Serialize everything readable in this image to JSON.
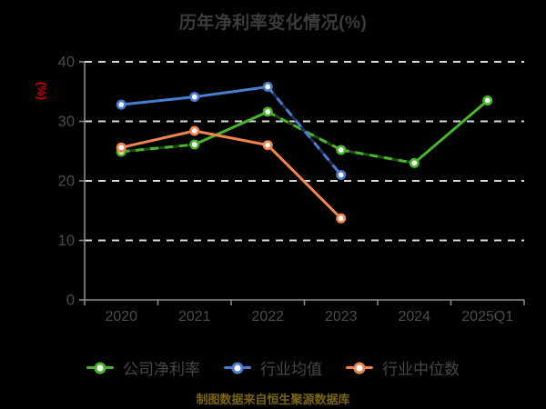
{
  "title": "历年净利率变化情况(%)",
  "footer": "制图数据来自恒生聚源数据库",
  "colors": {
    "background": "#000000",
    "grid": "#d9d9d9",
    "axis": "#8a8a8a",
    "title_text": "#3c3c3c",
    "tick_text": "#4b4b4b",
    "legend_text": "#474747",
    "y_unit_red": "#d40000",
    "footer_yellow": "#7a650e"
  },
  "chart_data": {
    "type": "line",
    "title": "历年净利率变化情况(%)",
    "ylabel": "(%)",
    "xlabel": "",
    "ylim": [
      0,
      40
    ],
    "yticks": [
      0,
      10,
      20,
      30,
      40
    ],
    "grid": "horizontal dashed white lines",
    "legend_position": "bottom",
    "categories": [
      "2020",
      "2021",
      "2022",
      "2023",
      "2024",
      "2025Q1"
    ],
    "series": [
      {
        "name": "公司净利率",
        "color": "#4ab42c",
        "values": [
          24.9,
          26.1,
          31.6,
          25.2,
          23.0,
          33.5
        ]
      },
      {
        "name": "行业均值",
        "color": "#4a7cd0",
        "values": [
          32.8,
          34.1,
          35.8,
          21.0,
          null,
          null
        ]
      },
      {
        "name": "行业中位数",
        "color": "#f0854f",
        "values": [
          25.6,
          28.4,
          26.0,
          13.7,
          null,
          null
        ]
      }
    ]
  }
}
